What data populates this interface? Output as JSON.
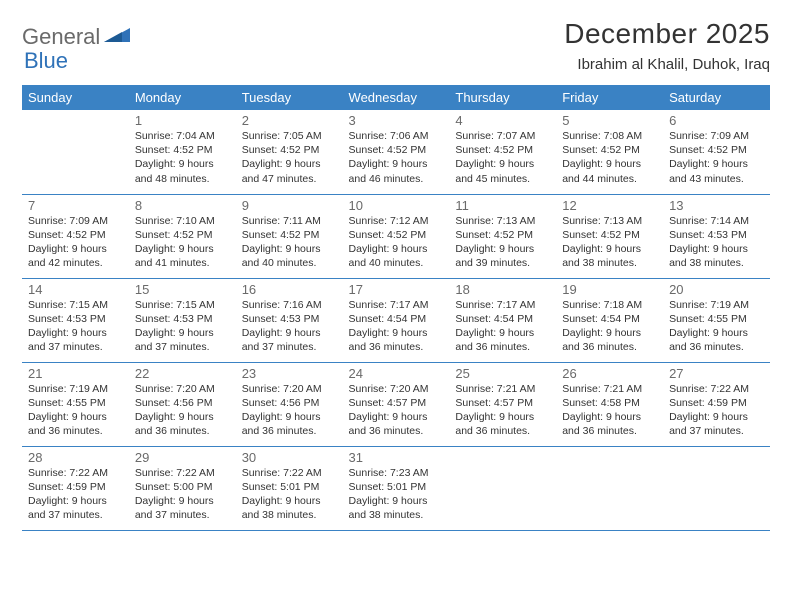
{
  "brand": {
    "part1": "General",
    "part2": "Blue"
  },
  "title": "December 2025",
  "location": "Ibrahim al Khalil, Duhok, Iraq",
  "colors": {
    "header_bg": "#3a82c4",
    "header_text": "#ffffff",
    "cell_border": "#3a82c4",
    "daynum_color": "#6a6a6a",
    "body_text": "#333333",
    "logo_gray": "#6a6a6a",
    "logo_blue": "#2f72b8",
    "page_bg": "#ffffff"
  },
  "typography": {
    "title_fontsize": 28,
    "location_fontsize": 15,
    "weekday_fontsize": 13,
    "daynum_fontsize": 13,
    "cell_fontsize": 10.5,
    "font_family": "Arial"
  },
  "weekdays": [
    "Sunday",
    "Monday",
    "Tuesday",
    "Wednesday",
    "Thursday",
    "Friday",
    "Saturday"
  ],
  "weeks": [
    [
      null,
      {
        "d": "1",
        "sr": "Sunrise: 7:04 AM",
        "ss": "Sunset: 4:52 PM",
        "dl1": "Daylight: 9 hours",
        "dl2": "and 48 minutes."
      },
      {
        "d": "2",
        "sr": "Sunrise: 7:05 AM",
        "ss": "Sunset: 4:52 PM",
        "dl1": "Daylight: 9 hours",
        "dl2": "and 47 minutes."
      },
      {
        "d": "3",
        "sr": "Sunrise: 7:06 AM",
        "ss": "Sunset: 4:52 PM",
        "dl1": "Daylight: 9 hours",
        "dl2": "and 46 minutes."
      },
      {
        "d": "4",
        "sr": "Sunrise: 7:07 AM",
        "ss": "Sunset: 4:52 PM",
        "dl1": "Daylight: 9 hours",
        "dl2": "and 45 minutes."
      },
      {
        "d": "5",
        "sr": "Sunrise: 7:08 AM",
        "ss": "Sunset: 4:52 PM",
        "dl1": "Daylight: 9 hours",
        "dl2": "and 44 minutes."
      },
      {
        "d": "6",
        "sr": "Sunrise: 7:09 AM",
        "ss": "Sunset: 4:52 PM",
        "dl1": "Daylight: 9 hours",
        "dl2": "and 43 minutes."
      }
    ],
    [
      {
        "d": "7",
        "sr": "Sunrise: 7:09 AM",
        "ss": "Sunset: 4:52 PM",
        "dl1": "Daylight: 9 hours",
        "dl2": "and 42 minutes."
      },
      {
        "d": "8",
        "sr": "Sunrise: 7:10 AM",
        "ss": "Sunset: 4:52 PM",
        "dl1": "Daylight: 9 hours",
        "dl2": "and 41 minutes."
      },
      {
        "d": "9",
        "sr": "Sunrise: 7:11 AM",
        "ss": "Sunset: 4:52 PM",
        "dl1": "Daylight: 9 hours",
        "dl2": "and 40 minutes."
      },
      {
        "d": "10",
        "sr": "Sunrise: 7:12 AM",
        "ss": "Sunset: 4:52 PM",
        "dl1": "Daylight: 9 hours",
        "dl2": "and 40 minutes."
      },
      {
        "d": "11",
        "sr": "Sunrise: 7:13 AM",
        "ss": "Sunset: 4:52 PM",
        "dl1": "Daylight: 9 hours",
        "dl2": "and 39 minutes."
      },
      {
        "d": "12",
        "sr": "Sunrise: 7:13 AM",
        "ss": "Sunset: 4:52 PM",
        "dl1": "Daylight: 9 hours",
        "dl2": "and 38 minutes."
      },
      {
        "d": "13",
        "sr": "Sunrise: 7:14 AM",
        "ss": "Sunset: 4:53 PM",
        "dl1": "Daylight: 9 hours",
        "dl2": "and 38 minutes."
      }
    ],
    [
      {
        "d": "14",
        "sr": "Sunrise: 7:15 AM",
        "ss": "Sunset: 4:53 PM",
        "dl1": "Daylight: 9 hours",
        "dl2": "and 37 minutes."
      },
      {
        "d": "15",
        "sr": "Sunrise: 7:15 AM",
        "ss": "Sunset: 4:53 PM",
        "dl1": "Daylight: 9 hours",
        "dl2": "and 37 minutes."
      },
      {
        "d": "16",
        "sr": "Sunrise: 7:16 AM",
        "ss": "Sunset: 4:53 PM",
        "dl1": "Daylight: 9 hours",
        "dl2": "and 37 minutes."
      },
      {
        "d": "17",
        "sr": "Sunrise: 7:17 AM",
        "ss": "Sunset: 4:54 PM",
        "dl1": "Daylight: 9 hours",
        "dl2": "and 36 minutes."
      },
      {
        "d": "18",
        "sr": "Sunrise: 7:17 AM",
        "ss": "Sunset: 4:54 PM",
        "dl1": "Daylight: 9 hours",
        "dl2": "and 36 minutes."
      },
      {
        "d": "19",
        "sr": "Sunrise: 7:18 AM",
        "ss": "Sunset: 4:54 PM",
        "dl1": "Daylight: 9 hours",
        "dl2": "and 36 minutes."
      },
      {
        "d": "20",
        "sr": "Sunrise: 7:19 AM",
        "ss": "Sunset: 4:55 PM",
        "dl1": "Daylight: 9 hours",
        "dl2": "and 36 minutes."
      }
    ],
    [
      {
        "d": "21",
        "sr": "Sunrise: 7:19 AM",
        "ss": "Sunset: 4:55 PM",
        "dl1": "Daylight: 9 hours",
        "dl2": "and 36 minutes."
      },
      {
        "d": "22",
        "sr": "Sunrise: 7:20 AM",
        "ss": "Sunset: 4:56 PM",
        "dl1": "Daylight: 9 hours",
        "dl2": "and 36 minutes."
      },
      {
        "d": "23",
        "sr": "Sunrise: 7:20 AM",
        "ss": "Sunset: 4:56 PM",
        "dl1": "Daylight: 9 hours",
        "dl2": "and 36 minutes."
      },
      {
        "d": "24",
        "sr": "Sunrise: 7:20 AM",
        "ss": "Sunset: 4:57 PM",
        "dl1": "Daylight: 9 hours",
        "dl2": "and 36 minutes."
      },
      {
        "d": "25",
        "sr": "Sunrise: 7:21 AM",
        "ss": "Sunset: 4:57 PM",
        "dl1": "Daylight: 9 hours",
        "dl2": "and 36 minutes."
      },
      {
        "d": "26",
        "sr": "Sunrise: 7:21 AM",
        "ss": "Sunset: 4:58 PM",
        "dl1": "Daylight: 9 hours",
        "dl2": "and 36 minutes."
      },
      {
        "d": "27",
        "sr": "Sunrise: 7:22 AM",
        "ss": "Sunset: 4:59 PM",
        "dl1": "Daylight: 9 hours",
        "dl2": "and 37 minutes."
      }
    ],
    [
      {
        "d": "28",
        "sr": "Sunrise: 7:22 AM",
        "ss": "Sunset: 4:59 PM",
        "dl1": "Daylight: 9 hours",
        "dl2": "and 37 minutes."
      },
      {
        "d": "29",
        "sr": "Sunrise: 7:22 AM",
        "ss": "Sunset: 5:00 PM",
        "dl1": "Daylight: 9 hours",
        "dl2": "and 37 minutes."
      },
      {
        "d": "30",
        "sr": "Sunrise: 7:22 AM",
        "ss": "Sunset: 5:01 PM",
        "dl1": "Daylight: 9 hours",
        "dl2": "and 38 minutes."
      },
      {
        "d": "31",
        "sr": "Sunrise: 7:23 AM",
        "ss": "Sunset: 5:01 PM",
        "dl1": "Daylight: 9 hours",
        "dl2": "and 38 minutes."
      },
      null,
      null,
      null
    ]
  ]
}
